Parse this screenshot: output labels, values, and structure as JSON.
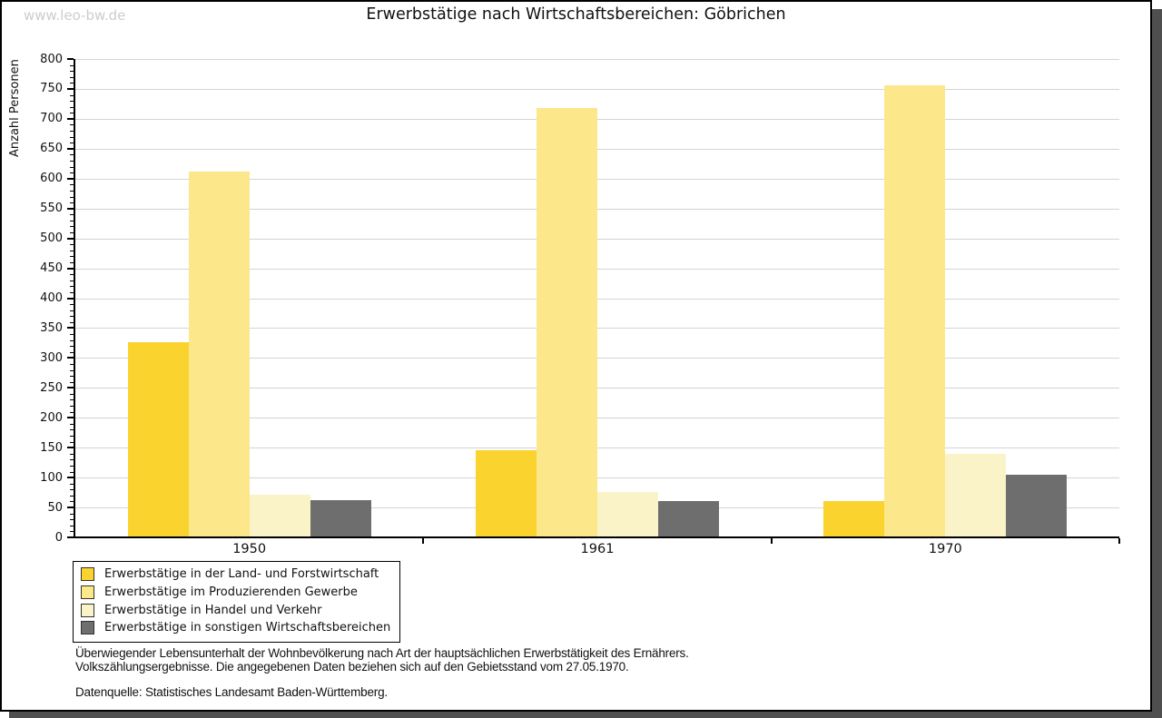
{
  "watermark": "www.leo-bw.de",
  "title": "Erwerbstätige nach Wirtschaftsbereichen: Göbrichen",
  "chart_data": {
    "type": "bar",
    "title": "Erwerbstätige nach Wirtschaftsbereichen: Göbrichen",
    "xlabel": "",
    "ylabel": "Anzahl Personen",
    "ylim": [
      0,
      800
    ],
    "ytick_step": 50,
    "ytick_minor_step": 10,
    "grid": "horizontal",
    "legend_position": "bottom-left",
    "categories": [
      "1950",
      "1961",
      "1970"
    ],
    "series": [
      {
        "name": "Erwerbstätige in der Land- und Forstwirtschaft",
        "color": "#fbd32e",
        "values": [
          327,
          146,
          61
        ]
      },
      {
        "name": "Erwerbstätige im Produzierenden Gewerbe",
        "color": "#fce78a",
        "values": [
          612,
          718,
          756
        ]
      },
      {
        "name": "Erwerbstätige in Handel und Verkehr",
        "color": "#fbf3c8",
        "values": [
          72,
          76,
          140
        ]
      },
      {
        "name": "Erwerbstätige in sonstigen Wirtschaftsbereichen",
        "color": "#6e6e6e",
        "values": [
          62,
          61,
          104
        ]
      }
    ]
  },
  "footnotes": {
    "line1": "Überwiegender Lebensunterhalt der Wohnbevölkerung nach Art der hauptsächlichen Erwerbstätigkeit des Ernährers.",
    "line2": "Volkszählungsergebnisse. Die angegebenen Daten beziehen sich auf den Gebietsstand vom 27.05.1970.",
    "source": "Datenquelle: Statistisches Landesamt Baden-Württemberg."
  }
}
